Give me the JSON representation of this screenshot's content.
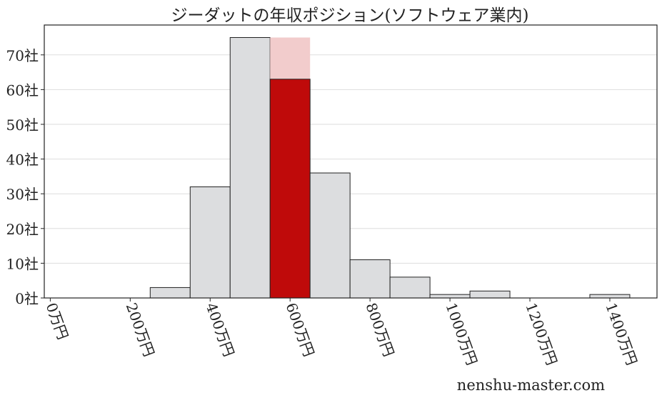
{
  "chart_data": {
    "type": "bar",
    "title": "ジーダットの年収ポジション(ソフトウェア業内)",
    "xlabel": "",
    "ylabel": "",
    "categories": [
      300,
      400,
      500,
      600,
      700,
      800,
      900,
      1000,
      1100,
      1400
    ],
    "values": [
      3,
      32,
      75,
      63,
      36,
      11,
      6,
      1,
      2,
      1
    ],
    "bin_width": 100,
    "highlight": {
      "category": 600,
      "value": 63,
      "background_value": 75
    },
    "xlim": [
      -15,
      1518
    ],
    "ylim": [
      0,
      78.6
    ],
    "xticks": [
      0,
      200,
      400,
      600,
      800,
      1000,
      1200,
      1400
    ],
    "xtick_labels": [
      "0万円",
      "200万円",
      "400万円",
      "600万円",
      "800万円",
      "1000万円",
      "1200万円",
      "1400万円"
    ],
    "yticks": [
      0,
      10,
      20,
      30,
      40,
      50,
      60,
      70
    ],
    "ytick_labels": [
      "0社",
      "10社",
      "20社",
      "30社",
      "40社",
      "50社",
      "60社",
      "70社"
    ],
    "grid": "horizontal",
    "colors": {
      "bar": "#dcdddf",
      "highlight": "#bf0a0a",
      "highlight_bg": "#f2cccc",
      "grid": "#dddddd"
    }
  },
  "watermark": "nenshu-master.com"
}
